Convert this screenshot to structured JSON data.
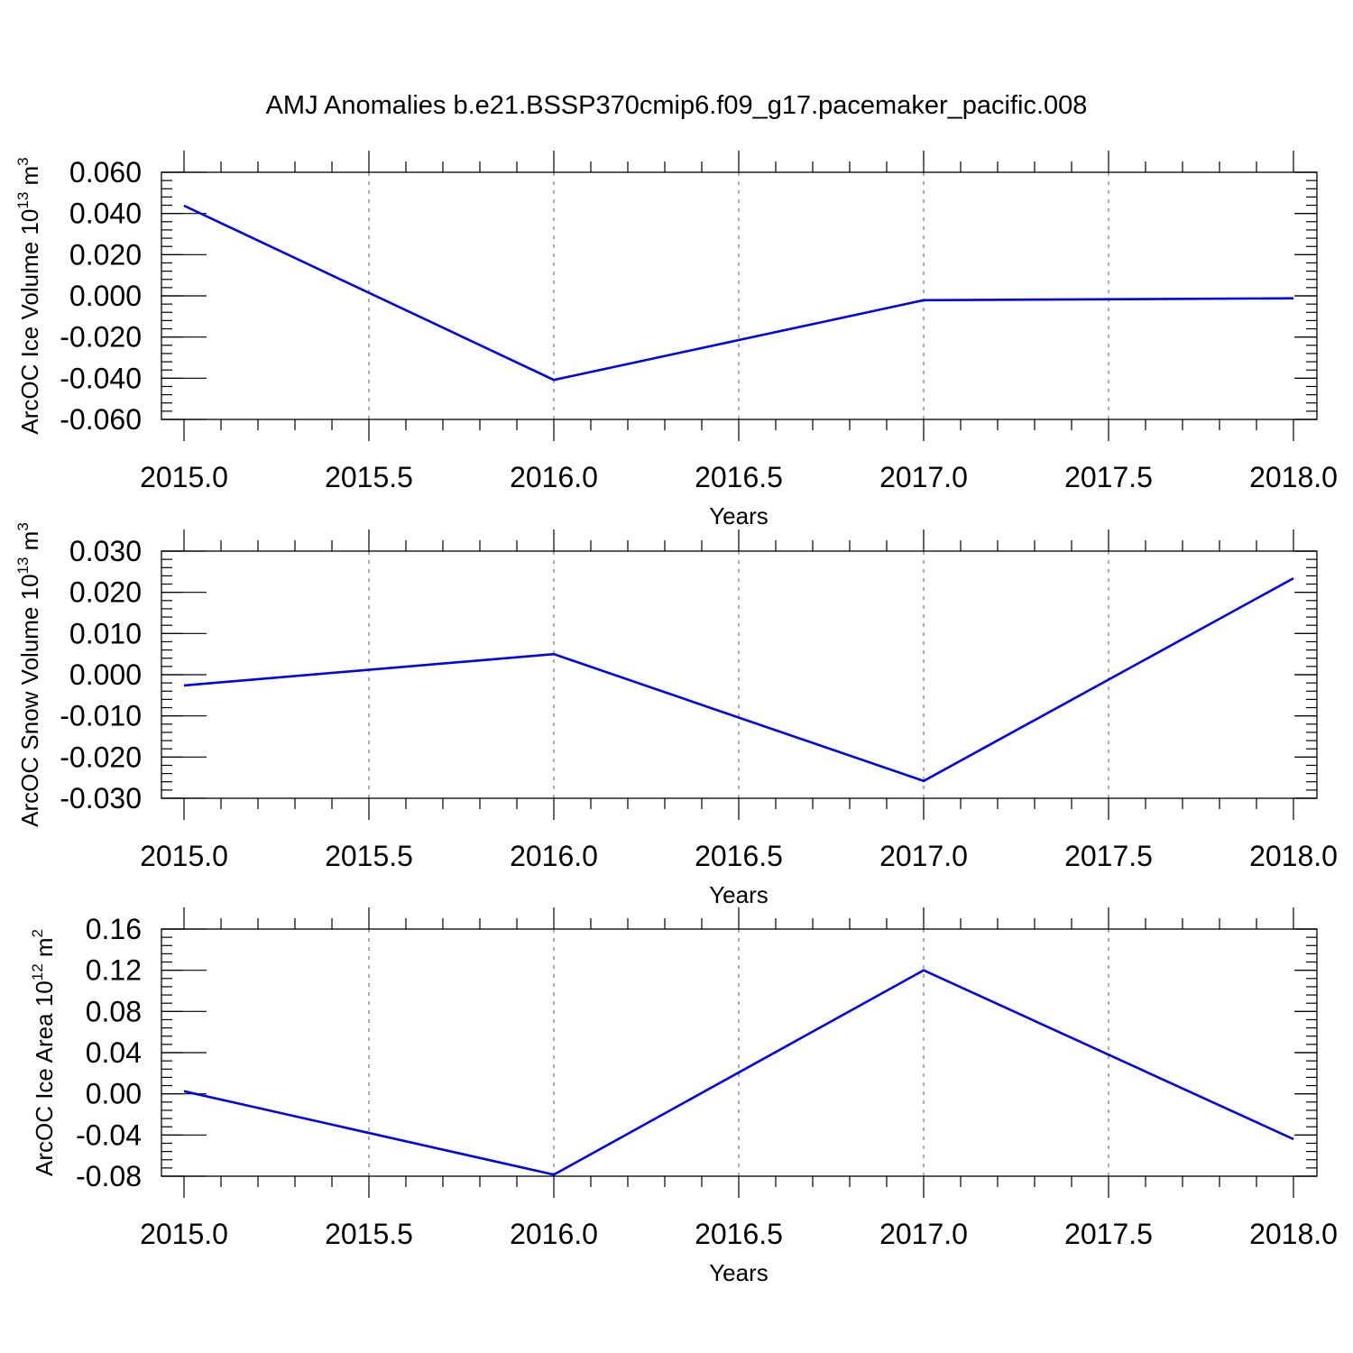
{
  "title": "AMJ Anomalies b.e21.BSSP370cmip6.f09_g17.pacemaker_pacific.008",
  "colors": {
    "line": "#0000ee",
    "grid": "#777777"
  },
  "chart_data": [
    {
      "type": "line",
      "ylabel": "ArcOC Ice Volume 10",
      "ylabel_exp": "13",
      "ylabel_unit": " m",
      "ylabel_unit_exp": "3",
      "xlabel": "Years",
      "xlim": [
        2015,
        2018
      ],
      "ylim": [
        -0.06,
        0.06
      ],
      "xticks": [
        2015.0,
        2015.5,
        2016.0,
        2016.5,
        2017.0,
        2017.5,
        2018.0
      ],
      "xtick_labels": [
        "2015.0",
        "2015.5",
        "2016.0",
        "2016.5",
        "2017.0",
        "2017.5",
        "2018.0"
      ],
      "yticks": [
        0.06,
        0.04,
        0.02,
        0.0,
        -0.02,
        -0.04,
        -0.06
      ],
      "ytick_labels": [
        "0.060",
        "0.040",
        "0.020",
        "0.000",
        "-0.020",
        "-0.040",
        "-0.060"
      ],
      "minor_yticks_per_major": 5,
      "grid": "vertical dashed",
      "series": [
        {
          "x": [
            2015,
            2016,
            2017,
            2018
          ],
          "values": [
            0.0438,
            -0.0408,
            -0.0021,
            -0.0012
          ]
        }
      ]
    },
    {
      "type": "line",
      "ylabel": "ArcOC Snow Volume 10",
      "ylabel_exp": "13",
      "ylabel_unit": " m",
      "ylabel_unit_exp": "3",
      "xlabel": "Years",
      "xlim": [
        2015,
        2018
      ],
      "ylim": [
        -0.03,
        0.03
      ],
      "xticks": [
        2015.0,
        2015.5,
        2016.0,
        2016.5,
        2017.0,
        2017.5,
        2018.0
      ],
      "xtick_labels": [
        "2015.0",
        "2015.5",
        "2016.0",
        "2016.5",
        "2017.0",
        "2017.5",
        "2018.0"
      ],
      "yticks": [
        0.03,
        0.02,
        0.01,
        0.0,
        -0.01,
        -0.02,
        -0.03
      ],
      "ytick_labels": [
        "0.030",
        "0.020",
        "0.010",
        "0.000",
        "-0.010",
        "-0.020",
        "-0.030"
      ],
      "minor_yticks_per_major": 5,
      "grid": "vertical dashed",
      "series": [
        {
          "x": [
            2015,
            2016,
            2017,
            2018
          ],
          "values": [
            -0.0026,
            0.005,
            -0.0258,
            0.0234
          ]
        }
      ]
    },
    {
      "type": "line",
      "ylabel": "ArcOC Ice Area 10",
      "ylabel_exp": "12",
      "ylabel_unit": " m",
      "ylabel_unit_exp": "2",
      "xlabel": "Years",
      "xlim": [
        2015,
        2018
      ],
      "ylim": [
        -0.08,
        0.16
      ],
      "xticks": [
        2015.0,
        2015.5,
        2016.0,
        2016.5,
        2017.0,
        2017.5,
        2018.0
      ],
      "xtick_labels": [
        "2015.0",
        "2015.5",
        "2016.0",
        "2016.5",
        "2017.0",
        "2017.5",
        "2018.0"
      ],
      "yticks": [
        0.16,
        0.12,
        0.08,
        0.04,
        0.0,
        -0.04,
        -0.08
      ],
      "ytick_labels": [
        "0.16",
        "0.12",
        "0.08",
        "0.04",
        "0.00",
        "-0.04",
        "-0.08"
      ],
      "minor_yticks_per_major": 5,
      "grid": "vertical dashed",
      "series": [
        {
          "x": [
            2015,
            2016,
            2017,
            2018
          ],
          "values": [
            0.0025,
            -0.0785,
            0.12,
            -0.044
          ]
        }
      ]
    }
  ]
}
